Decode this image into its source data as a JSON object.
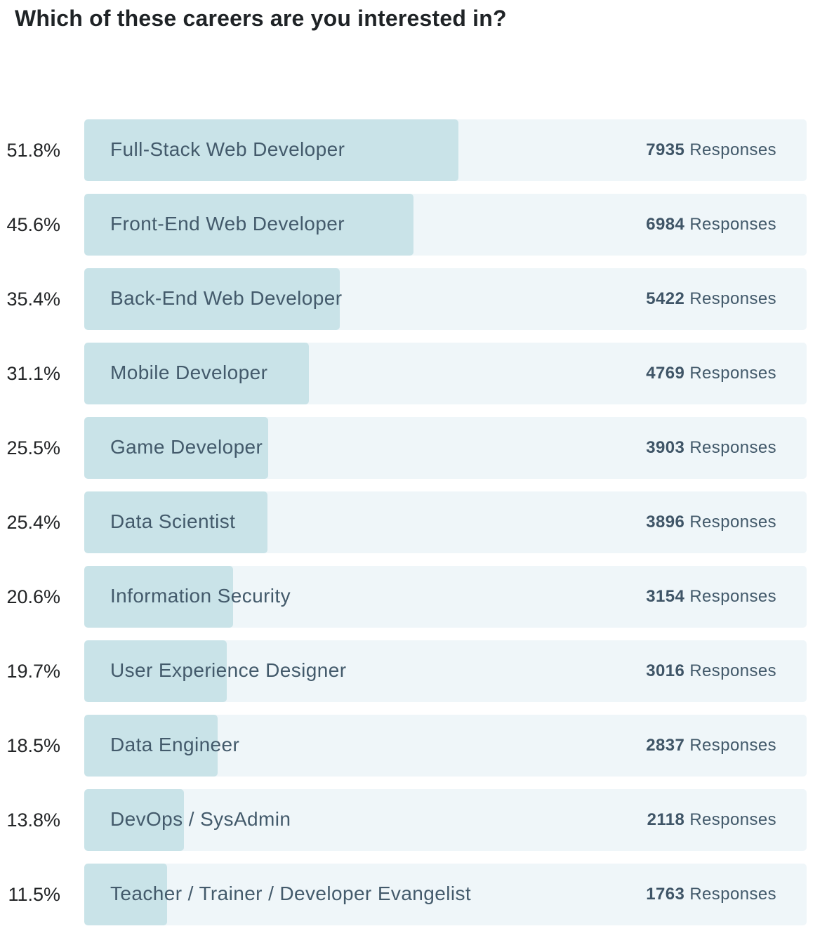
{
  "title": "Which of these careers are you interested in?",
  "responses_suffix": "Responses",
  "colors": {
    "fill": "#c9e3e8",
    "track": "#eff6f9",
    "label": "#435a6b",
    "title": "#1f2326"
  },
  "chart_data": {
    "type": "bar",
    "orientation": "horizontal",
    "title": "Which of these careers are you interested in?",
    "xlabel": "",
    "ylabel": "",
    "xlim": [
      0,
      100
    ],
    "unit": "percent",
    "categories": [
      "Full-Stack Web Developer",
      "Front-End Web Developer",
      "Back-End Web Developer",
      "Mobile Developer",
      "Game Developer",
      "Data Scientist",
      "Information Security",
      "User Experience Designer",
      "Data Engineer",
      "DevOps / SysAdmin",
      "Teacher / Trainer / Developer Evangelist"
    ],
    "values": [
      51.8,
      45.6,
      35.4,
      31.1,
      25.5,
      25.4,
      20.6,
      19.7,
      18.5,
      13.8,
      11.5
    ],
    "value_labels": [
      "51.8%",
      "45.6%",
      "35.4%",
      "31.1%",
      "25.5%",
      "25.4%",
      "20.6%",
      "19.7%",
      "18.5%",
      "13.8%",
      "11.5%"
    ],
    "responses": [
      7935,
      6984,
      5422,
      4769,
      3903,
      3896,
      3154,
      3016,
      2837,
      2118,
      1763
    ]
  }
}
